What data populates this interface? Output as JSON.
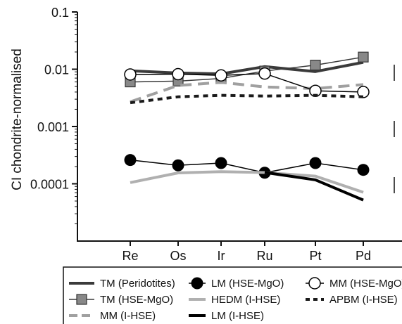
{
  "chart_data": {
    "type": "line",
    "ylabel": "CI chondrite-normalised",
    "yscale": "log",
    "ylim": [
      1e-05,
      0.1
    ],
    "y_ticks": [
      {
        "value": 0.1,
        "label": "0.1"
      },
      {
        "value": 0.01,
        "label": "0.01"
      },
      {
        "value": 0.001,
        "label": "0.001"
      },
      {
        "value": 0.0001,
        "label": "0.0001"
      }
    ],
    "categories": [
      "Re",
      "Os",
      "Ir",
      "Ru",
      "Pt",
      "Pd"
    ],
    "grid": false,
    "legend_position": "bottom",
    "series": [
      {
        "name": "TM (Peridotites)",
        "values": [
          0.0094,
          0.0086,
          0.0083,
          0.0111,
          0.0091,
          0.0132
        ],
        "color": "#3a3a3a",
        "dash": "solid",
        "marker": "none",
        "width": 4
      },
      {
        "name": "TM (HSE-MgO)",
        "values": [
          0.006,
          0.0062,
          0.0069,
          0.0093,
          0.0118,
          0.0163
        ],
        "color": "#3a3a3a",
        "dash": "solid",
        "marker": "square-gray",
        "width": 1.5
      },
      {
        "name": "MM (I-HSE)",
        "values": [
          0.0027,
          0.0052,
          0.0059,
          0.0049,
          0.0046,
          0.0054
        ],
        "color": "#a0a0a0",
        "dash": "dashed",
        "marker": "none",
        "width": 4
      },
      {
        "name": "LM (HSE-MgO)",
        "values": [
          0.00026,
          0.00021,
          0.00023,
          0.000156,
          0.00023,
          0.000175
        ],
        "color": "#000000",
        "dash": "solid",
        "marker": "circle-black",
        "width": 1.5
      },
      {
        "name": "HEDM (I-HSE)",
        "values": [
          0.000105,
          0.000155,
          0.000163,
          0.000157,
          0.000136,
          7.1e-05
        ],
        "color": "#b0b0b0",
        "dash": "solid",
        "marker": "none",
        "width": 4
      },
      {
        "name": "LM (I-HSE)",
        "values": [
          null,
          null,
          null,
          0.000158,
          0.000117,
          5.2e-05
        ],
        "color": "#000000",
        "dash": "solid",
        "marker": "none",
        "width": 4
      },
      {
        "name": "MM (HSE-MgO)",
        "values": [
          0.0081,
          0.0082,
          0.0078,
          0.0084,
          0.0042,
          0.004
        ],
        "color": "#000000",
        "dash": "solid",
        "marker": "circle-white",
        "width": 1.5
      },
      {
        "name": "APBM (I-HSE)",
        "values": [
          0.0026,
          0.0033,
          0.0035,
          0.0034,
          0.0035,
          0.0033
        ],
        "color": "#1a1a1a",
        "dash": "dotted",
        "marker": "none",
        "width": 4
      }
    ],
    "legend": [
      {
        "label": "TM (Peridotites)",
        "series_index": 0
      },
      {
        "label": "TM (HSE-MgO)",
        "series_index": 1
      },
      {
        "label": "MM (I-HSE)",
        "series_index": 2
      },
      {
        "label": "LM (HSE-MgO)",
        "series_index": 3
      },
      {
        "label": "HEDM (I-HSE)",
        "series_index": 4
      },
      {
        "label": "LM (I-HSE)",
        "series_index": 5
      },
      {
        "label": "MM (HSE-MgO)",
        "series_index": 6
      },
      {
        "label": "APBM (I-HSE)",
        "series_index": 7
      }
    ]
  }
}
